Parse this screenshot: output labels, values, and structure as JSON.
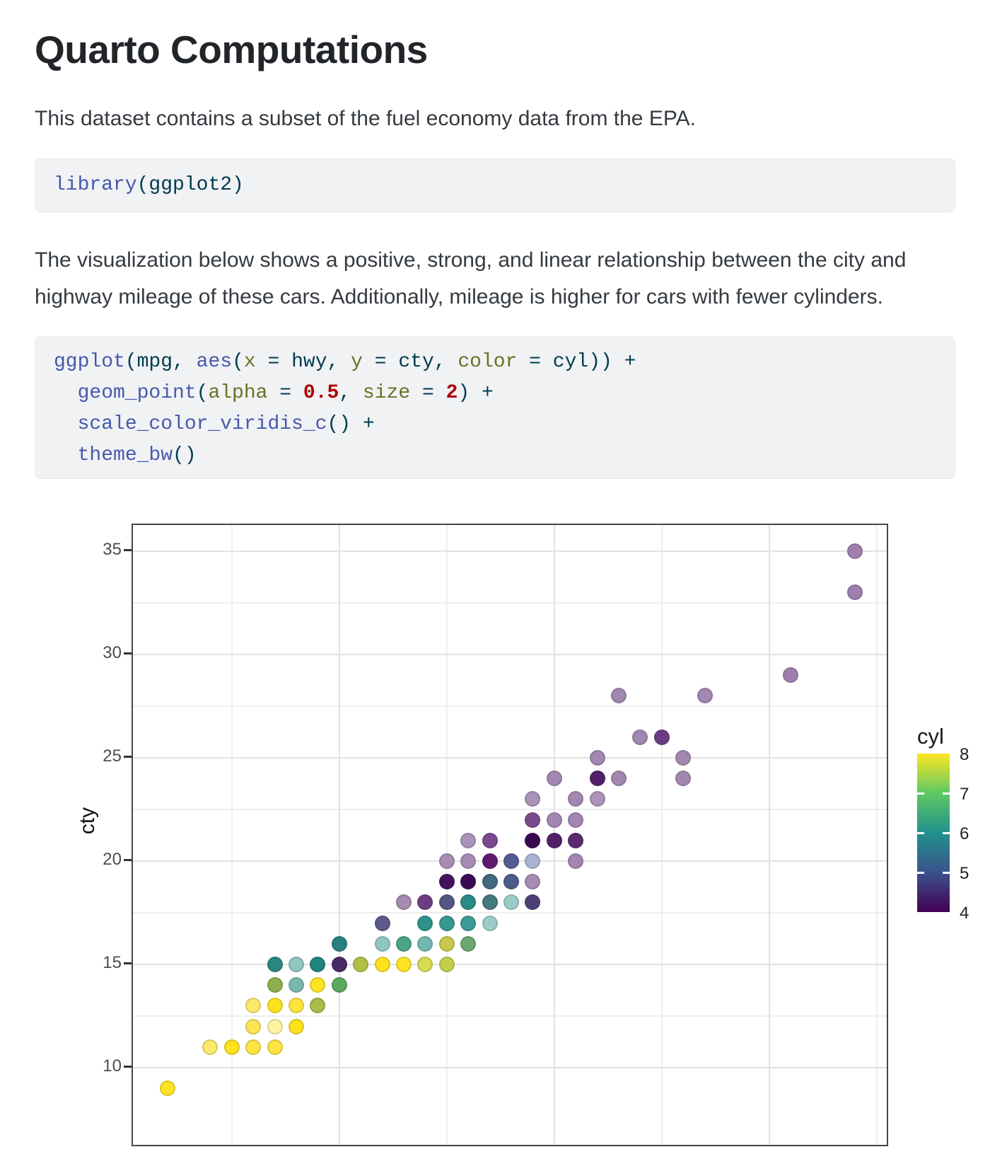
{
  "page": {
    "title": "Quarto Computations",
    "para1": "This dataset contains a subset of the fuel economy data from the EPA.",
    "para2": "The visualization below shows a positive, strong, and linear relationship between the city and highway mileage of these cars. Additionally, mileage is higher for cars with fewer cylinders."
  },
  "code_colors": {
    "function": "#4758AB",
    "base": "#003B4F",
    "named_argument": "#657422",
    "number": "#AD0000",
    "background": "#f0f2f4"
  },
  "code_blocks": [
    {
      "lines": [
        [
          [
            "fn",
            "library"
          ],
          [
            "b",
            "(ggplot2)"
          ]
        ]
      ]
    },
    {
      "lines": [
        [
          [
            "fn",
            "ggplot"
          ],
          [
            "b",
            "(mpg, "
          ],
          [
            "fn",
            "aes"
          ],
          [
            "b",
            "("
          ],
          [
            "arg",
            "x"
          ],
          [
            "b",
            " = hwy, "
          ],
          [
            "arg",
            "y"
          ],
          [
            "b",
            " = cty, "
          ],
          [
            "arg",
            "color"
          ],
          [
            "b",
            " = cyl)) +"
          ]
        ],
        [
          [
            "b",
            "  "
          ],
          [
            "fn",
            "geom_point"
          ],
          [
            "b",
            "("
          ],
          [
            "arg",
            "alpha"
          ],
          [
            "b",
            " = "
          ],
          [
            "num",
            "0.5"
          ],
          [
            "b",
            ", "
          ],
          [
            "arg",
            "size"
          ],
          [
            "b",
            " = "
          ],
          [
            "num",
            "2"
          ],
          [
            "b",
            ") +"
          ]
        ],
        [
          [
            "b",
            "  "
          ],
          [
            "fn",
            "scale_color_viridis_c"
          ],
          [
            "b",
            "() +"
          ]
        ],
        [
          [
            "b",
            "  "
          ],
          [
            "fn",
            "theme_bw"
          ],
          [
            "b",
            "()"
          ]
        ]
      ]
    }
  ],
  "chart_data": {
    "type": "scatter",
    "ylabel": "cty",
    "legend_title": "cyl",
    "legend_labels": [
      "8",
      "7",
      "6",
      "5",
      "4"
    ],
    "legend_range": [
      4,
      8
    ],
    "legend_inner_ticks": [
      5,
      6,
      7
    ],
    "viridis_stops": [
      "#440154",
      "#3b528b",
      "#21918c",
      "#5ec962",
      "#fde725"
    ],
    "x_domain": [
      10.4,
      45.6
    ],
    "y_top": 36.27,
    "x_ticks_major": [
      20,
      30,
      40
    ],
    "x_ticks_minor": [
      15,
      25,
      35,
      45
    ],
    "y_ticks_major": [
      35,
      30,
      25,
      20,
      15,
      10
    ],
    "y_ticks_minor": [
      32.5,
      27.5,
      22.5,
      17.5,
      12.5
    ],
    "grid": true,
    "legend_position": "right",
    "points": [
      [
        44,
        35,
        4,
        "#9e7fae"
      ],
      [
        44,
        33,
        4,
        "#9e7fae"
      ],
      [
        41,
        29,
        4,
        "#9e7fae"
      ],
      [
        33,
        28,
        4,
        "#a287b1"
      ],
      [
        37,
        28,
        4,
        "#a287b1"
      ],
      [
        34,
        26,
        4,
        "#a287b1"
      ],
      [
        35,
        26,
        4,
        "#6b3c82"
      ],
      [
        32,
        25,
        4,
        "#a287b1"
      ],
      [
        36,
        25,
        4,
        "#a287b1"
      ],
      [
        30,
        24,
        4,
        "#a287b1"
      ],
      [
        32,
        24,
        4,
        "#531f69"
      ],
      [
        33,
        24,
        4,
        "#a287b1"
      ],
      [
        36,
        24,
        4,
        "#a287b1"
      ],
      [
        29,
        23,
        4,
        "#ab93b9"
      ],
      [
        31,
        23,
        4,
        "#a287b1"
      ],
      [
        32,
        23,
        4,
        "#ab93b9"
      ],
      [
        29,
        22,
        4,
        "#7a4a8e"
      ],
      [
        30,
        22,
        4,
        "#a287b1"
      ],
      [
        31,
        22,
        4,
        "#a287b1"
      ],
      [
        26,
        21,
        4,
        "#ab93b9"
      ],
      [
        27,
        21,
        4,
        "#7c4890"
      ],
      [
        29,
        21,
        4,
        "#38094f"
      ],
      [
        30,
        21,
        4,
        "#531f69"
      ],
      [
        31,
        21,
        4,
        "#5b2a71"
      ],
      [
        25,
        20,
        4,
        "#a78cb2"
      ],
      [
        26,
        20,
        4,
        "#a78cb2"
      ],
      [
        27,
        20,
        4,
        "#5f1a70"
      ],
      [
        28,
        20,
        5,
        "#555c95"
      ],
      [
        29,
        20,
        5,
        "#a9b4d2"
      ],
      [
        31,
        20,
        4,
        "#a287b1"
      ],
      [
        25,
        19,
        4,
        "#46125e"
      ],
      [
        26,
        19,
        4,
        "#390a51"
      ],
      [
        27,
        19,
        5,
        "#44687e"
      ],
      [
        28,
        19,
        5,
        "#4c5c8a"
      ],
      [
        29,
        19,
        4,
        "#a78cb2"
      ],
      [
        23,
        18,
        4,
        "#a58bb2"
      ],
      [
        24,
        18,
        4,
        "#6d3d84"
      ],
      [
        25,
        18,
        5,
        "#545684"
      ],
      [
        26,
        18,
        6,
        "#2a8a85"
      ],
      [
        27,
        18,
        5,
        "#46787f"
      ],
      [
        28,
        18,
        6,
        "#9cccc7"
      ],
      [
        29,
        18,
        5,
        "#4e4077"
      ],
      [
        22,
        17,
        5,
        "#5c5a8a"
      ],
      [
        24,
        17,
        6,
        "#2e938c"
      ],
      [
        25,
        17,
        6,
        "#36988f"
      ],
      [
        26,
        17,
        6,
        "#3a9c94"
      ],
      [
        27,
        17,
        6,
        "#9cccc7"
      ],
      [
        20,
        16,
        6,
        "#2a7f7f"
      ],
      [
        22,
        16,
        6,
        "#8ec6c1"
      ],
      [
        23,
        16,
        6,
        "#4aa487"
      ],
      [
        24,
        16,
        6,
        "#72b8b0"
      ],
      [
        25,
        16,
        8,
        "#c8c94e"
      ],
      [
        26,
        16,
        6,
        "#6aaa6e"
      ],
      [
        17,
        15,
        6,
        "#298680"
      ],
      [
        18,
        15,
        6,
        "#8ec6c1"
      ],
      [
        19,
        15,
        6,
        "#21837d"
      ],
      [
        20,
        15,
        4,
        "#472a66"
      ],
      [
        21,
        15,
        8,
        "#b4bf45"
      ],
      [
        22,
        15,
        8,
        "#fde31c"
      ],
      [
        23,
        15,
        8,
        "#fde525"
      ],
      [
        24,
        15,
        8,
        "#d6dc52"
      ],
      [
        25,
        15,
        8,
        "#c3cf4b"
      ],
      [
        17,
        14,
        8,
        "#8cb14c"
      ],
      [
        18,
        14,
        6,
        "#7ab8ad"
      ],
      [
        19,
        14,
        8,
        "#fde523"
      ],
      [
        20,
        14,
        6,
        "#5ba85f"
      ],
      [
        16,
        13,
        8,
        "#fbe96b"
      ],
      [
        17,
        13,
        8,
        "#fde31c"
      ],
      [
        18,
        13,
        8,
        "#fce43c"
      ],
      [
        19,
        13,
        8,
        "#a9bc4a"
      ],
      [
        16,
        12,
        8,
        "#fbe455"
      ],
      [
        17,
        12,
        8,
        "#fdf3a3"
      ],
      [
        18,
        12,
        8,
        "#fde31c"
      ],
      [
        14,
        11,
        8,
        "#fbe96b"
      ],
      [
        15,
        11,
        8,
        "#fde31c"
      ],
      [
        16,
        11,
        8,
        "#fde643"
      ],
      [
        17,
        11,
        8,
        "#fde643"
      ],
      [
        12,
        9,
        8,
        "#fde525"
      ]
    ]
  }
}
